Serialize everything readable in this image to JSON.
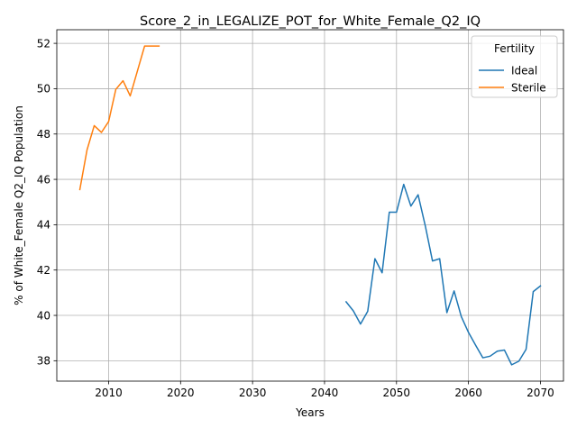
{
  "chart_data": {
    "type": "line",
    "title": "Score_2_in_LEGALIZE_POT_for_White_Female_Q2_IQ",
    "xlabel": "Years",
    "ylabel": "% of White_Female Q2_IQ Population",
    "xlim": [
      2002.8,
      2073.2
    ],
    "ylim": [
      37.1,
      52.6
    ],
    "xticks": [
      2010,
      2020,
      2030,
      2040,
      2050,
      2060,
      2070
    ],
    "yticks": [
      38,
      40,
      42,
      44,
      46,
      48,
      50,
      52
    ],
    "grid": true,
    "legend": {
      "title": "Fertility",
      "placement": "top-right"
    },
    "series": [
      {
        "name": "Ideal",
        "color": "#1f77b4",
        "x": [
          2043,
          2044,
          2045,
          2046,
          2047,
          2048,
          2049,
          2050,
          2051,
          2052,
          2053,
          2054,
          2055,
          2056,
          2057,
          2058,
          2059,
          2060,
          2061,
          2062,
          2063,
          2064,
          2065,
          2066,
          2067,
          2068,
          2069,
          2070
        ],
        "y": [
          40.6,
          40.2,
          39.62,
          40.18,
          42.5,
          41.88,
          44.55,
          44.55,
          45.78,
          44.82,
          45.32,
          43.95,
          42.4,
          42.5,
          40.12,
          41.08,
          39.95,
          39.25,
          38.68,
          38.13,
          38.2,
          38.42,
          38.47,
          37.82,
          37.98,
          38.5,
          41.05,
          41.3
        ]
      },
      {
        "name": "Sterile",
        "color": "#ff7f0e",
        "x": [
          2006,
          2007,
          2008,
          2009,
          2010,
          2011,
          2012,
          2013,
          2014,
          2015,
          2016,
          2017
        ],
        "y": [
          45.55,
          47.3,
          48.37,
          48.07,
          48.55,
          49.97,
          50.35,
          49.68,
          50.78,
          51.88,
          51.88,
          51.88
        ]
      }
    ]
  }
}
